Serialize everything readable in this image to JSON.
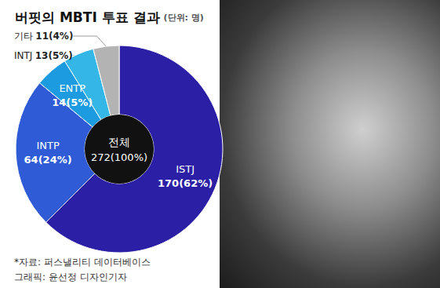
{
  "chart_data": {
    "type": "pie",
    "title": "버핏의 MBTI 투표 결과",
    "subtitle": "(단위: 명)",
    "categories": [
      "ISTJ",
      "INTP",
      "ENTP",
      "INTJ",
      "기타"
    ],
    "values": [
      170,
      64,
      14,
      13,
      11
    ],
    "value_labels": [
      "170(62%)",
      "64(24%)",
      "14(5%)",
      "13(5%)",
      "11(4%)"
    ],
    "colors": [
      "#2b1fa6",
      "#2f5cd6",
      "#1d9be0",
      "#34b7e6",
      "#b3b3b3"
    ],
    "data_labels": true,
    "center_label": [
      "전체",
      "272(100%)"
    ],
    "annotations": [
      "*자료: 퍼스낼리티 데이터베이스",
      "그래픽: 윤선정 디자인기자"
    ]
  }
}
